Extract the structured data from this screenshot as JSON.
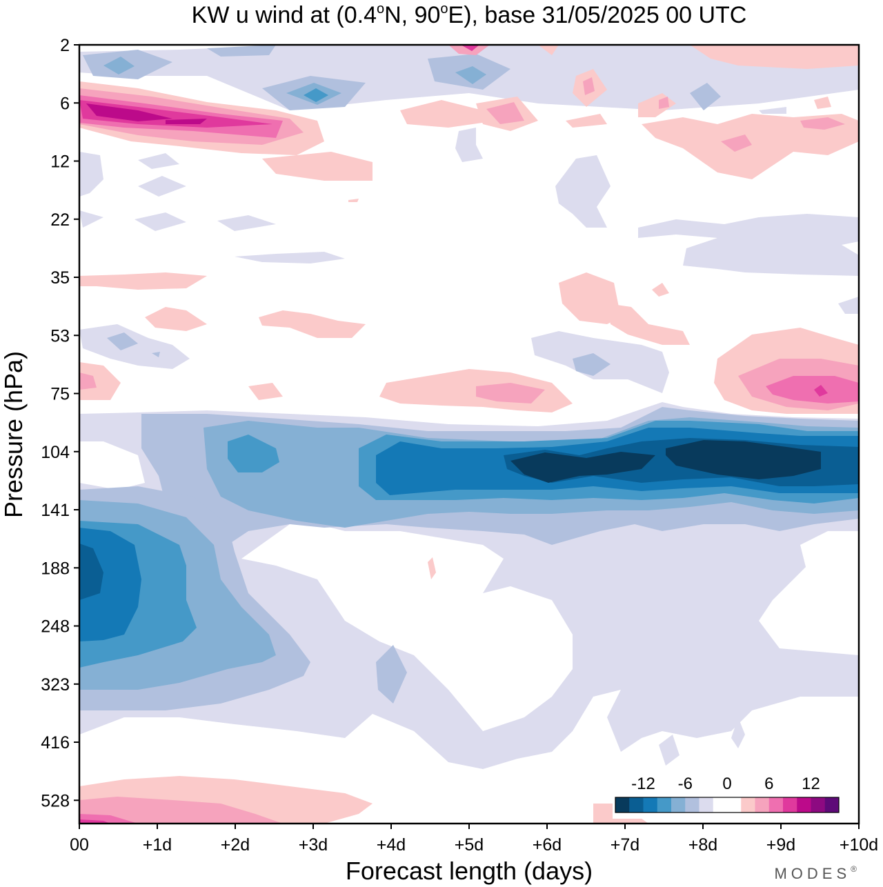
{
  "chart_data": {
    "type": "heatmap",
    "title": {
      "prefix": "KW u wind at (0.4",
      "deg1": "o",
      "middle": "N, 90",
      "deg2": "o",
      "suffix": "E),  base 31/05/2025  00 UTC"
    },
    "xlabel": "Forecast length (days)",
    "ylabel": "Pressure (hPa)",
    "x_ticks": [
      "00",
      "+1d",
      "+2d",
      "+3d",
      "+4d",
      "+5d",
      "+6d",
      "+7d",
      "+8d",
      "+9d",
      "+10d"
    ],
    "xlim": [
      0,
      10
    ],
    "y_ticks": [
      "2",
      "6",
      "12",
      "22",
      "35",
      "53",
      "75",
      "104",
      "141",
      "188",
      "248",
      "323",
      "416",
      "528"
    ],
    "y_axis": "pressure levels, increasing downward",
    "grid": false,
    "colorbar": {
      "placement": "bottom-right",
      "tick_labels": [
        "-12",
        "-6",
        "0",
        "6",
        "12"
      ],
      "colors": [
        "#083a5c",
        "#0a5e93",
        "#1479b6",
        "#4599c8",
        "#85b0d4",
        "#b1c0de",
        "#dcdcee",
        "#ffffff",
        "#ffffff",
        "#fbcaca",
        "#f6a3bd",
        "#ef6fb0",
        "#e0399d",
        "#bc0a8a",
        "#8d0a81",
        "#5e0a78"
      ],
      "levels": [
        -16,
        -14,
        -12,
        -10,
        -8,
        -6,
        -4,
        -2,
        0,
        2,
        4,
        6,
        8,
        10,
        12,
        14,
        16
      ]
    },
    "regions": [
      {
        "level": 2,
        "sign": "positive",
        "x_days": [
          0.0,
          3.0
        ],
        "pressure_hPa": [
          5,
          11
        ]
      },
      {
        "level": 6,
        "sign": "positive",
        "x_days": [
          0.0,
          2.6
        ],
        "pressure_hPa": [
          6,
          9
        ]
      },
      {
        "level": 10,
        "sign": "positive",
        "x_days": [
          0.2,
          1.6
        ],
        "pressure_hPa": [
          6,
          8
        ]
      },
      {
        "level": -4,
        "sign": "negative",
        "x_days": [
          2.5,
          4.0
        ],
        "pressure_hPa": [
          4,
          7
        ]
      },
      {
        "level": -8,
        "sign": "negative",
        "x_days": [
          2.8,
          3.2
        ],
        "pressure_hPa": [
          5,
          7
        ]
      },
      {
        "level": 2,
        "sign": "positive",
        "x_days": [
          8.8,
          10.0
        ],
        "pressure_hPa": [
          60,
          90
        ]
      },
      {
        "level": 8,
        "sign": "positive",
        "x_days": [
          9.3,
          10.0
        ],
        "pressure_hPa": [
          70,
          85
        ]
      },
      {
        "level": -8,
        "sign": "negative",
        "x_days": [
          2.0,
          10.0
        ],
        "pressure_hPa": [
          90,
          150
        ]
      },
      {
        "level": -12,
        "sign": "negative",
        "x_days": [
          4.0,
          10.0
        ],
        "pressure_hPa": [
          100,
          135
        ]
      },
      {
        "level": -16,
        "sign": "negative",
        "x_days": [
          7.5,
          9.8
        ],
        "pressure_hPa": [
          100,
          125
        ]
      },
      {
        "level": -8,
        "sign": "negative",
        "x_days": [
          0.0,
          2.5
        ],
        "pressure_hPa": [
          150,
          330
        ]
      },
      {
        "level": -14,
        "sign": "negative",
        "x_days": [
          0.0,
          0.3
        ],
        "pressure_hPa": [
          170,
          210
        ]
      },
      {
        "level": 4,
        "sign": "positive",
        "x_days": [
          0.0,
          2.8
        ],
        "pressure_hPa": [
          500,
          560
        ]
      }
    ]
  },
  "brand": {
    "name": "MODES",
    "mark": "®"
  }
}
